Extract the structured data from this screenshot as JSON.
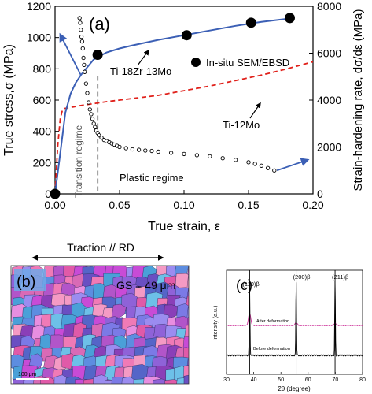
{
  "colors": {
    "blue_curve": "#3b5fb5",
    "red_curve": "#e0201a",
    "markers": "#000000",
    "dashed_line": "#999999",
    "xrd_after": "#cc3399",
    "xrd_before": "#000000"
  },
  "panel_b": {
    "label": "(b)",
    "arrow_label": "Traction // RD",
    "grain_size": "GS = 49 μm",
    "scale_bar": "100 μm"
  },
  "chart_data": [
    {
      "panel_label": "(a)",
      "type": "line",
      "xlabel": "True strain, ε",
      "ylabel": "True stress,σ (MPa)",
      "y2label": "Strain-hardening rate, dσ/dε (MPa)",
      "xlim": [
        0,
        0.2
      ],
      "ylim": [
        0,
        1200
      ],
      "y2lim": [
        0,
        8000
      ],
      "x_ticks": [
        "0.00",
        "0.05",
        "0.10",
        "0.15",
        "0.20"
      ],
      "y_ticks": [
        "0",
        "200",
        "400",
        "600",
        "800",
        "1000",
        "1200"
      ],
      "y2_ticks": [
        "0",
        "2000",
        "4000",
        "6000",
        "8000"
      ],
      "series": [
        {
          "name": "Ti-18Zr-13Mo",
          "axis": "left",
          "style": "solid-blue",
          "x": [
            0,
            0.004,
            0.008,
            0.012,
            0.016,
            0.02,
            0.025,
            0.03,
            0.04,
            0.05,
            0.06,
            0.08,
            0.1,
            0.12,
            0.14,
            0.16,
            0.18
          ],
          "y": [
            0,
            260,
            520,
            640,
            710,
            760,
            810,
            860,
            905,
            930,
            950,
            985,
            1015,
            1045,
            1075,
            1100,
            1120
          ]
        },
        {
          "name": "Ti-12Mo",
          "axis": "left",
          "style": "dashed-red",
          "x": [
            0,
            0.002,
            0.004,
            0.006,
            0.01,
            0.02,
            0.04,
            0.06,
            0.08,
            0.1,
            0.12,
            0.14,
            0.16,
            0.18,
            0.2
          ],
          "y": [
            0,
            300,
            480,
            545,
            550,
            565,
            590,
            610,
            630,
            660,
            690,
            725,
            760,
            800,
            845
          ]
        },
        {
          "name": "In-situ SEM/EBSD",
          "axis": "left",
          "style": "markers",
          "x": [
            0,
            0.033,
            0.102,
            0.152,
            0.182
          ],
          "y": [
            0,
            890,
            1015,
            1095,
            1125
          ]
        },
        {
          "name": "Strain-hardening rate",
          "axis": "right",
          "style": "open-circles",
          "x": [
            0.019,
            0.0195,
            0.02,
            0.0205,
            0.021,
            0.0215,
            0.022,
            0.0225,
            0.023,
            0.024,
            0.025,
            0.026,
            0.027,
            0.028,
            0.029,
            0.03,
            0.031,
            0.032,
            0.033,
            0.034,
            0.036,
            0.038,
            0.04,
            0.042,
            0.044,
            0.046,
            0.048,
            0.05,
            0.055,
            0.06,
            0.065,
            0.07,
            0.075,
            0.08,
            0.09,
            0.1,
            0.11,
            0.12,
            0.13,
            0.14,
            0.15,
            0.155,
            0.16,
            0.165,
            0.17
          ],
          "y": [
            7500,
            7300,
            7000,
            6700,
            6500,
            6200,
            5800,
            5500,
            5200,
            4700,
            4300,
            3900,
            3600,
            3400,
            3200,
            3000,
            2850,
            2700,
            2600,
            2500,
            2400,
            2300,
            2250,
            2200,
            2150,
            2100,
            2050,
            2000,
            1950,
            1900,
            1880,
            1850,
            1830,
            1800,
            1750,
            1700,
            1650,
            1600,
            1520,
            1450,
            1350,
            1280,
            1200,
            1100,
            1000
          ]
        }
      ],
      "annotations": {
        "transition_regime": "Transition regime",
        "plastic_regime": "Plastic regime",
        "transition_strain": 0.033
      }
    },
    {
      "panel_label": "(c)",
      "type": "line",
      "xlabel": "2θ (degree)",
      "ylabel": "Intensity (a.u.)",
      "xlim": [
        30,
        80
      ],
      "x_ticks": [
        "30",
        "40",
        "50",
        "60",
        "70",
        "80"
      ],
      "peaks": [
        "(110)β",
        "(200)β",
        "(211)β"
      ],
      "peak_positions": [
        38.5,
        55.6,
        69.9
      ],
      "series": [
        {
          "name": "After deformation",
          "peak_heights": [
            0.55,
            0.12,
            0.1
          ],
          "width_deg": 1.2
        },
        {
          "name": "Before deformation",
          "peak_heights": [
            1.7,
            1.7,
            1.7
          ],
          "width_deg": 0.35
        }
      ]
    }
  ]
}
